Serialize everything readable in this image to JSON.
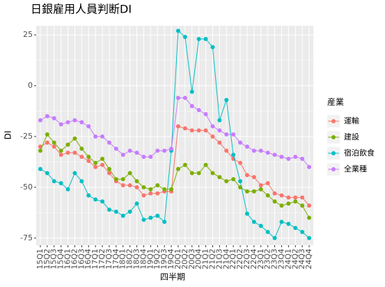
{
  "chart_data": {
    "type": "line",
    "title": "日銀雇用人員判断DI",
    "x_label": "四半期",
    "y_label": "DI",
    "legend_title": "産業",
    "categories": [
      "15Q1",
      "15Q2",
      "15Q3",
      "15Q4",
      "16Q1",
      "16Q2",
      "16Q3",
      "16Q4",
      "17Q1",
      "17Q2",
      "17Q3",
      "17Q4",
      "18Q1",
      "18Q2",
      "18Q3",
      "18Q4",
      "19Q1",
      "19Q2",
      "19Q3",
      "19Q4",
      "20Q1",
      "20Q2",
      "20Q3",
      "20Q4",
      "21Q1",
      "21Q2",
      "21Q3",
      "21Q4",
      "22Q1",
      "22Q2",
      "22Q3",
      "22Q4",
      "23Q1",
      "23Q2",
      "23Q3",
      "23Q4",
      "24Q1",
      "24Q2",
      "24Q3",
      "24Q4"
    ],
    "series": [
      {
        "name": "運輸",
        "color": "#F8766D",
        "values": [
          -30,
          -28,
          -30,
          -34,
          -33,
          -33,
          -35,
          -37,
          -40,
          -39,
          -43,
          -47,
          -49,
          -49,
          -50,
          -54,
          -53,
          -53,
          -52,
          -52,
          -20,
          -21,
          -22,
          -22,
          -22,
          -25,
          -28,
          -32,
          -36,
          -38,
          -44,
          -45,
          -49,
          -48,
          -53,
          -54,
          -55,
          -55,
          -55,
          -59
        ]
      },
      {
        "name": "建設",
        "color": "#7CAE00",
        "values": [
          -32,
          -24,
          -28,
          -32,
          -29,
          -26,
          -31,
          -35,
          -38,
          -36,
          -41,
          -46,
          -46,
          -43,
          -47,
          -50,
          -51,
          -49,
          -51,
          -51,
          -41,
          -39,
          -43,
          -43,
          -39,
          -43,
          -45,
          -47,
          -46,
          -50,
          -52,
          -52,
          -51,
          -54,
          -57,
          -59,
          -58,
          -57,
          -59,
          -65
        ]
      },
      {
        "name": "宿泊飲食",
        "color": "#00BFC4",
        "values": [
          -41,
          -43,
          -47,
          -48,
          -51,
          -43,
          -47,
          -54,
          -56,
          -57,
          -61,
          -62,
          -64,
          -62,
          -58,
          -66,
          -65,
          -64,
          -67,
          -32,
          27,
          24,
          -3,
          23,
          23,
          19,
          -17,
          -7,
          -34,
          -47,
          -63,
          -67,
          -69,
          -72,
          -75,
          -67,
          -68,
          -70,
          -72,
          -75
        ]
      },
      {
        "name": "全業種",
        "color": "#C77CFF",
        "values": [
          -17,
          -15,
          -16,
          -19,
          -18,
          -17,
          -18,
          -20,
          -25,
          -25,
          -28,
          -31,
          -34,
          -32,
          -33,
          -35,
          -35,
          -32,
          -32,
          -31,
          -6,
          -6,
          -10,
          -12,
          -14,
          -20,
          -22,
          -24,
          -24,
          -28,
          -30,
          -32,
          -32,
          -33,
          -34,
          -35,
          -36,
          -35,
          -36,
          -40
        ]
      }
    ],
    "ylim": [
      -78.5,
      29.5
    ],
    "yticks": [
      -75,
      -50,
      -25,
      0,
      25
    ],
    "grid": true,
    "legend_position": "right"
  }
}
